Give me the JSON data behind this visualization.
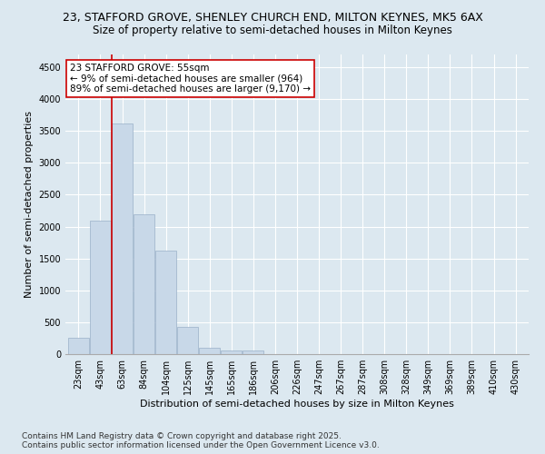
{
  "title_line1": "23, STAFFORD GROVE, SHENLEY CHURCH END, MILTON KEYNES, MK5 6AX",
  "title_line2": "Size of property relative to semi-detached houses in Milton Keynes",
  "xlabel": "Distribution of semi-detached houses by size in Milton Keynes",
  "ylabel": "Number of semi-detached properties",
  "footnote": "Contains HM Land Registry data © Crown copyright and database right 2025.\nContains public sector information licensed under the Open Government Licence v3.0.",
  "bin_labels": [
    "23sqm",
    "43sqm",
    "63sqm",
    "84sqm",
    "104sqm",
    "125sqm",
    "145sqm",
    "165sqm",
    "186sqm",
    "206sqm",
    "226sqm",
    "247sqm",
    "267sqm",
    "287sqm",
    "308sqm",
    "328sqm",
    "349sqm",
    "369sqm",
    "389sqm",
    "410sqm",
    "430sqm"
  ],
  "bar_values": [
    250,
    2100,
    3620,
    2200,
    1620,
    430,
    95,
    55,
    55,
    0,
    0,
    0,
    0,
    0,
    0,
    0,
    0,
    0,
    0,
    0,
    0
  ],
  "bar_color": "#c8d8e8",
  "bar_edge_color": "#9ab0c8",
  "vline_x": 1.5,
  "vline_color": "#cc0000",
  "annotation_text": "23 STAFFORD GROVE: 55sqm\n← 9% of semi-detached houses are smaller (964)\n89% of semi-detached houses are larger (9,170) →",
  "annotation_box_color": "#ffffff",
  "annotation_box_edge": "#cc0000",
  "ylim": [
    0,
    4700
  ],
  "yticks": [
    0,
    500,
    1000,
    1500,
    2000,
    2500,
    3000,
    3500,
    4000,
    4500
  ],
  "bg_color": "#dce8f0",
  "plot_bg_color": "#dce8f0",
  "title1_fontsize": 9,
  "title2_fontsize": 8.5,
  "xlabel_fontsize": 8,
  "ylabel_fontsize": 8,
  "tick_fontsize": 7,
  "footnote_fontsize": 6.5,
  "annotation_fontsize": 7.5
}
